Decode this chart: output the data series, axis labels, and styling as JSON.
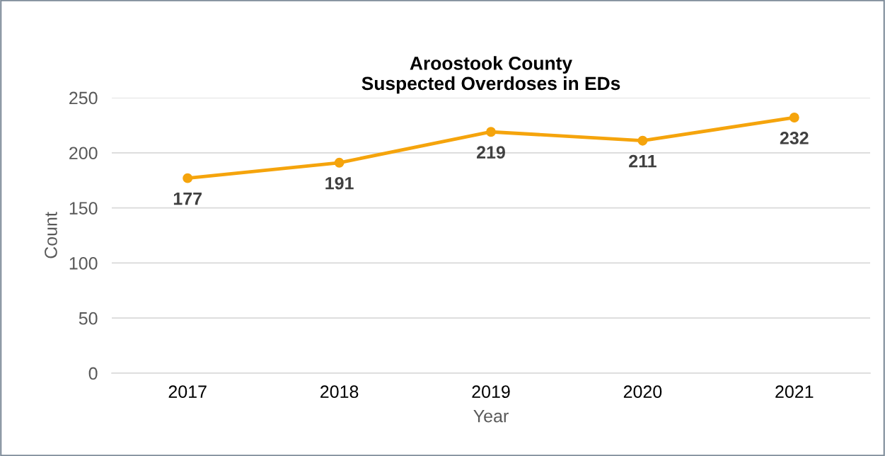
{
  "chart_data": {
    "type": "line",
    "title": "Aroostook County\nSuspected Overdoses in EDs",
    "xlabel": "Year",
    "ylabel": "Count",
    "categories": [
      "2017",
      "2018",
      "2019",
      "2020",
      "2021"
    ],
    "series": [
      {
        "color": "#f5a40c",
        "values": [
          177,
          191,
          219,
          211,
          232
        ]
      }
    ],
    "ylim": [
      0,
      250
    ],
    "yticks": [
      0,
      50,
      100,
      150,
      200,
      250
    ],
    "grid": "y",
    "marker": "circle",
    "line_style": "solid",
    "data_labels": true,
    "legend": false
  }
}
